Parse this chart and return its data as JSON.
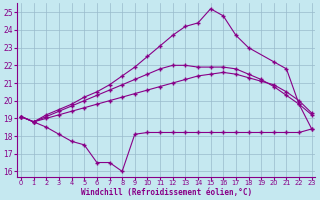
{
  "xlabel": "Windchill (Refroidissement éolien,°C)",
  "bg_color": "#c5e8f0",
  "line_color": "#880088",
  "grid_color": "#99bbcc",
  "xlim": [
    -0.3,
    23.3
  ],
  "ylim": [
    15.7,
    25.5
  ],
  "yticks": [
    16,
    17,
    18,
    19,
    20,
    21,
    22,
    23,
    24,
    25
  ],
  "xticks": [
    0,
    1,
    2,
    3,
    4,
    5,
    6,
    7,
    8,
    9,
    10,
    11,
    12,
    13,
    14,
    15,
    16,
    17,
    18,
    19,
    20,
    21,
    22,
    23
  ],
  "curve1_x": [
    0,
    1,
    2,
    3,
    4,
    5,
    6,
    7,
    8,
    9,
    10,
    11,
    12,
    13,
    14,
    15,
    16,
    17,
    18,
    19,
    20,
    21,
    22,
    23
  ],
  "curve1_y": [
    19.1,
    18.8,
    18.5,
    18.1,
    17.7,
    17.5,
    16.5,
    16.5,
    16.0,
    18.1,
    18.2,
    18.2,
    18.2,
    18.2,
    18.2,
    18.2,
    18.2,
    18.2,
    18.2,
    18.2,
    18.2,
    18.2,
    18.2,
    18.4
  ],
  "curve2_x": [
    0,
    1,
    2,
    3,
    4,
    5,
    6,
    7,
    8,
    9,
    10,
    11,
    12,
    13,
    14,
    15,
    16,
    17,
    18,
    19,
    20,
    21,
    22,
    23
  ],
  "curve2_y": [
    19.1,
    18.8,
    19.0,
    19.2,
    19.4,
    19.6,
    19.8,
    20.0,
    20.2,
    20.4,
    20.6,
    20.8,
    21.0,
    21.2,
    21.4,
    21.5,
    21.6,
    21.5,
    21.3,
    21.1,
    20.9,
    20.5,
    20.0,
    19.3
  ],
  "curve3_x": [
    0,
    1,
    2,
    3,
    4,
    5,
    6,
    7,
    8,
    9,
    10,
    11,
    12,
    13,
    14,
    15,
    16,
    17,
    18,
    19,
    20,
    21,
    22,
    23
  ],
  "curve3_y": [
    19.1,
    18.8,
    19.1,
    19.4,
    19.7,
    20.0,
    20.3,
    20.6,
    20.9,
    21.2,
    21.5,
    21.8,
    22.0,
    22.0,
    21.9,
    21.9,
    21.9,
    21.8,
    21.5,
    21.2,
    20.8,
    20.3,
    19.8,
    19.2
  ],
  "curve4_x": [
    0,
    1,
    2,
    3,
    4,
    5,
    6,
    7,
    8,
    9,
    10,
    11,
    12,
    13,
    14,
    15,
    16,
    17,
    18,
    20,
    21,
    22,
    23
  ],
  "curve4_y": [
    19.1,
    18.8,
    19.2,
    19.5,
    19.8,
    20.2,
    20.5,
    20.9,
    21.4,
    21.9,
    22.5,
    23.1,
    23.7,
    24.2,
    24.4,
    25.2,
    24.8,
    23.7,
    23.0,
    22.2,
    21.8,
    19.8,
    18.4
  ]
}
